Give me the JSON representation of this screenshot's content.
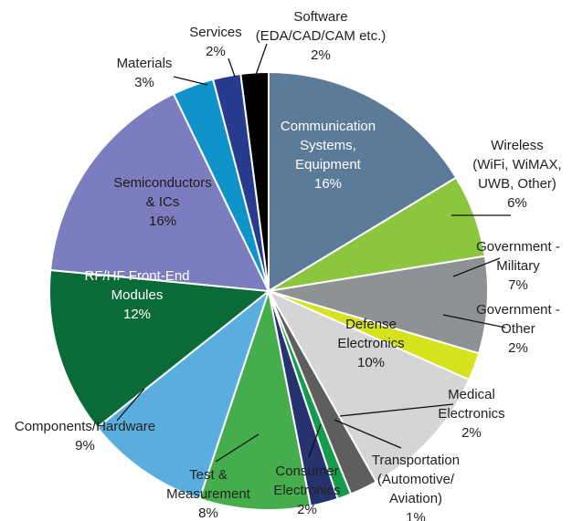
{
  "chart_data": {
    "type": "pie",
    "title": "",
    "start_angle_deg": 0,
    "direction": "clockwise",
    "slices": [
      {
        "label": "Communication Systems, Equipment",
        "label_lines": [
          "Communication",
          "Systems,",
          "Equipment"
        ],
        "value": 16,
        "value_text": "16%",
        "color": "#5b7b98",
        "label_position": "inside"
      },
      {
        "label": "Wireless (WiFi, WiMAX, UWB, Other)",
        "label_lines": [
          "Wireless",
          "(WiFi, WiMAX,",
          "UWB, Other)"
        ],
        "value": 6,
        "value_text": "6%",
        "color": "#8cc63f",
        "label_position": "outside"
      },
      {
        "label": "Government - Military",
        "label_lines": [
          "Government -",
          "Military"
        ],
        "value": 7,
        "value_text": "7%",
        "color": "#8f9294",
        "label_position": "outside"
      },
      {
        "label": "Government - Other",
        "label_lines": [
          "Government -",
          "Other"
        ],
        "value": 2,
        "value_text": "2%",
        "color": "#d7e21f",
        "label_position": "outside"
      },
      {
        "label": "Defense Electronics",
        "label_lines": [
          "Defense",
          "Electronics"
        ],
        "value": 10,
        "value_text": "10%",
        "color": "#d4d5d6",
        "label_position": "inside"
      },
      {
        "label": "Medical Electronics",
        "label_lines": [
          "Medical",
          "Electronics"
        ],
        "value": 2,
        "value_text": "2%",
        "color": "#5e5e5e",
        "label_position": "outside"
      },
      {
        "label": "Transportation (Automotive/ Aviation)",
        "label_lines": [
          "Transportation",
          "(Automotive/",
          "Aviation)"
        ],
        "value": 1,
        "value_text": "1%",
        "color": "#169b4e",
        "label_position": "outside"
      },
      {
        "label": "Consumer Electronics",
        "label_lines": [
          "Consumer",
          "Electronics"
        ],
        "value": 2,
        "value_text": "2%",
        "color": "#27336e",
        "label_position": "outside"
      },
      {
        "label": "Test & Measurement",
        "label_lines": [
          "Test &",
          "Measurement"
        ],
        "value": 8,
        "value_text": "8%",
        "color": "#45ad4b",
        "label_position": "outside"
      },
      {
        "label": "Components/Hardware",
        "label_lines": [
          "Components/Hardware"
        ],
        "value": 9,
        "value_text": "9%",
        "color": "#5aaedd",
        "label_position": "outside"
      },
      {
        "label": "RF/HF Front-End Modules",
        "label_lines": [
          "RF/HF Front-End",
          "Modules"
        ],
        "value": 12,
        "value_text": "12%",
        "color": "#0b6b38",
        "label_position": "inside"
      },
      {
        "label": "Semiconductors & ICs",
        "label_lines": [
          "Semiconductors",
          "& ICs"
        ],
        "value": 16,
        "value_text": "16%",
        "color": "#7c7dbf",
        "label_position": "inside"
      },
      {
        "label": "Materials",
        "label_lines": [
          "Materials"
        ],
        "value": 3,
        "value_text": "3%",
        "color": "#0f93c9",
        "label_position": "outside"
      },
      {
        "label": "Services",
        "label_lines": [
          "Services"
        ],
        "value": 2,
        "value_text": "2%",
        "color": "#283c8f",
        "label_position": "outside"
      },
      {
        "label": "Software (EDA/CAD/CAM etc.)",
        "label_lines": [
          "Software",
          "(EDA/CAD/CAM etc.)"
        ],
        "value": 2,
        "value_text": "2%",
        "color": "#000000",
        "label_position": "outside"
      }
    ]
  }
}
